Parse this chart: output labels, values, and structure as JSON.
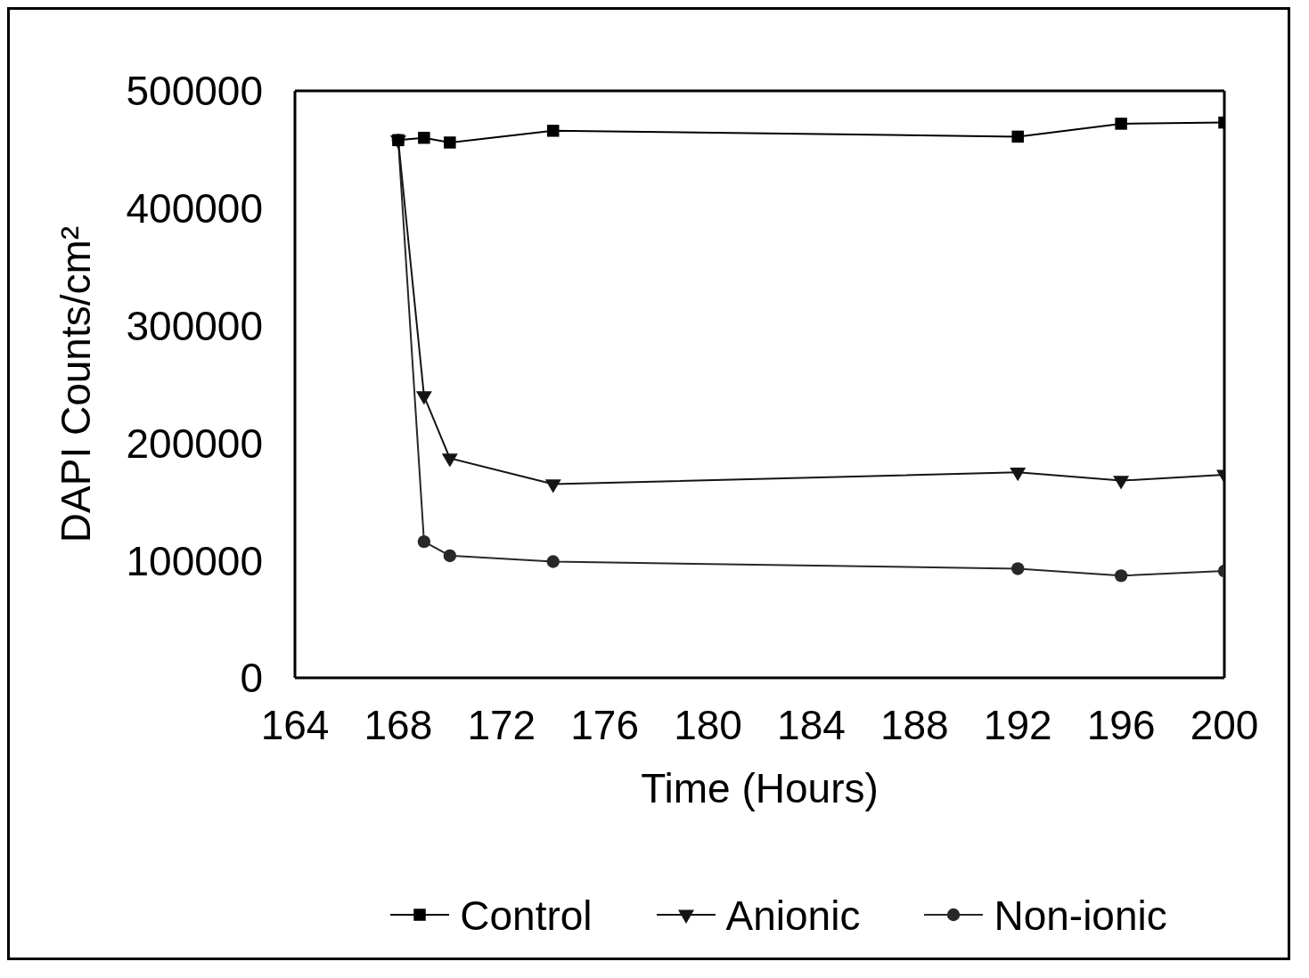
{
  "chart_data": {
    "type": "line",
    "xlabel": "Time (Hours)",
    "ylabel": "DAPI Counts/cm²",
    "x": [
      168,
      169,
      170,
      174,
      192,
      196,
      200
    ],
    "series": [
      {
        "name": "Control",
        "color": "#000000",
        "marker": "square",
        "values": [
          458000,
          460000,
          456000,
          466000,
          461000,
          472000,
          473000
        ]
      },
      {
        "name": "Anionic",
        "color": "#141414",
        "marker": "triangle",
        "values": [
          458000,
          240000,
          187000,
          165000,
          175000,
          168000,
          173000
        ]
      },
      {
        "name": "Non-ionic",
        "color": "#282828",
        "marker": "circle",
        "values": [
          458000,
          116000,
          104000,
          99000,
          93000,
          87000,
          91000
        ]
      }
    ],
    "xlim": [
      164,
      200
    ],
    "xticks": [
      164,
      168,
      172,
      176,
      180,
      184,
      188,
      192,
      196,
      200
    ],
    "ylim": [
      0,
      500000
    ],
    "yticks": [
      0,
      100000,
      200000,
      300000,
      400000,
      500000
    ],
    "grid": false,
    "legend": "bottom",
    "line_style": "solid"
  }
}
